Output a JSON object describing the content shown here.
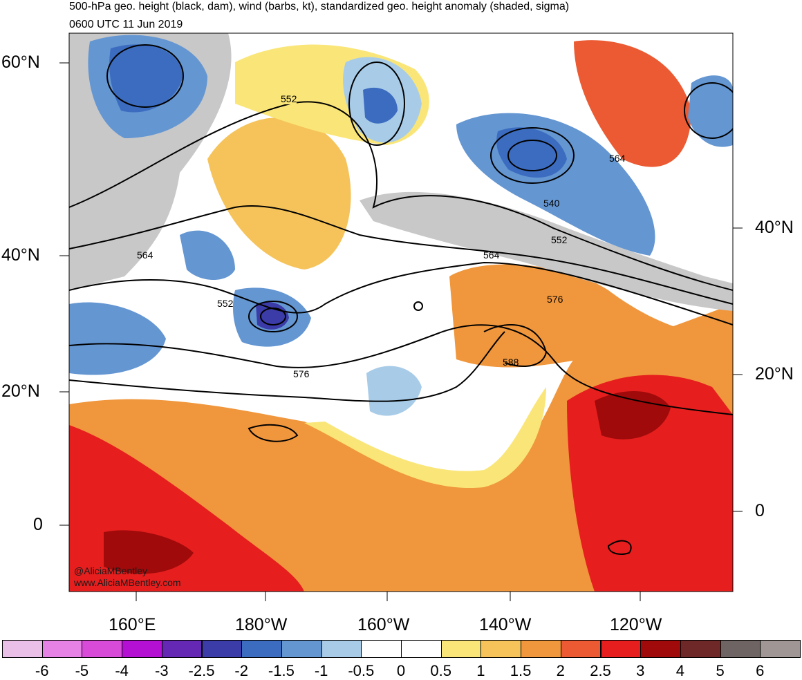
{
  "title": {
    "line1": "500-hPa geo. height (black, dam), wind (barbs, kt), standardized geo. height anomaly (shaded, sigma)",
    "line2": "0600 UTC 11 Jun 2019"
  },
  "credit": {
    "handle": "@AliciaMBentley",
    "website": "www.AliciaMBentley.com"
  },
  "axes": {
    "lon_labels": [
      "160°E",
      "180°W",
      "160°W",
      "140°W",
      "120°W"
    ],
    "lat_left": [
      "60°N",
      "40°N",
      "20°N",
      "0"
    ],
    "lat_right": [
      "40°N",
      "20°N",
      "0"
    ]
  },
  "contour_labels": [
    "552",
    "564",
    "552",
    "552",
    "540",
    "564",
    "576",
    "564",
    "576",
    "588"
  ],
  "colorbar": {
    "labels": [
      "-6",
      "-5",
      "-4",
      "-3",
      "-2.5",
      "-2",
      "-1.5",
      "-1",
      "-0.5",
      "0",
      "0.5",
      "1",
      "1.5",
      "2",
      "2.5",
      "3",
      "4",
      "5",
      "6"
    ],
    "colors": [
      "#ebc0e8",
      "#e682e6",
      "#d84ad8",
      "#b410d4",
      "#6428b4",
      "#3c3ca8",
      "#3c6cc0",
      "#6496d2",
      "#a8cce8",
      "#ffffff",
      "#ffffff",
      "#fae678",
      "#f5c35a",
      "#f0963c",
      "#eb5a32",
      "#e61e1e",
      "#a00a0a",
      "#6e2828",
      "#6e6464",
      "#a09696"
    ]
  },
  "legend_colors": {
    "gray_high_neg": "#c8c8c8",
    "land_outline": "#555555"
  }
}
